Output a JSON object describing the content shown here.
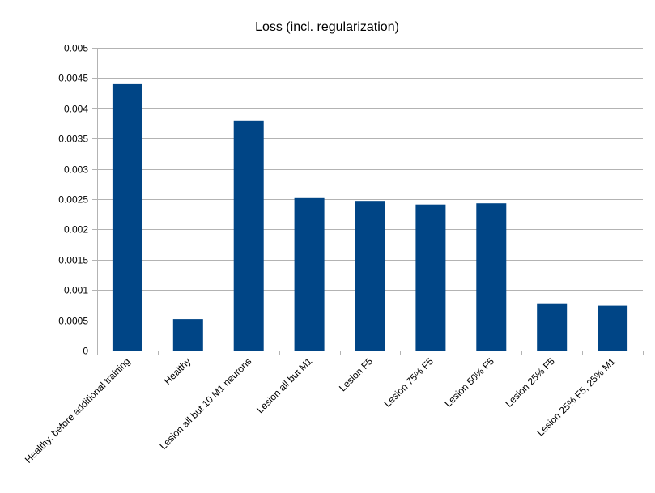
{
  "chart_data": {
    "type": "bar",
    "title": "Loss (incl. regularization)",
    "xlabel": "",
    "ylabel": "",
    "categories": [
      "Healthy, before additional training",
      "Healthy",
      "Lesion all but 10 M1 neurons",
      "Lesion all but M1",
      "Lesion F5",
      "Lesion 75% F5",
      "Lesion 50% F5",
      "Lesion 25% F5",
      "Lesion 25% F5, 25% M1"
    ],
    "values": [
      0.0044,
      0.00052,
      0.0038,
      0.00253,
      0.00247,
      0.00241,
      0.00243,
      0.00078,
      0.00074
    ],
    "ylim": [
      0,
      0.005
    ],
    "yticks": [
      "0",
      "0.0005",
      "0.001",
      "0.0015",
      "0.002",
      "0.0025",
      "0.003",
      "0.0035",
      "0.004",
      "0.0045",
      "0.005"
    ],
    "grid": true,
    "legend": "none",
    "bar_color": "#004586"
  }
}
